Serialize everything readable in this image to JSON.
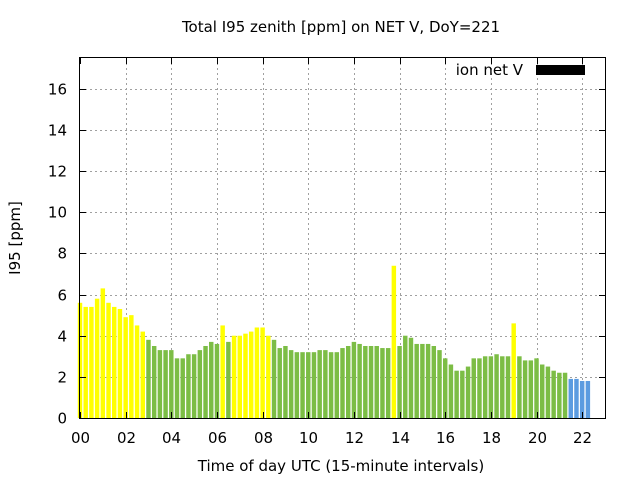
{
  "chart_data": {
    "type": "bar",
    "title": "Total I95 zenith [ppm] on NET V, DoY=221",
    "xlabel": "Time of day UTC (15-minute intervals)",
    "ylabel": "I95 [ppm]",
    "xlim": [
      0,
      23
    ],
    "ylim": [
      0,
      17.5
    ],
    "xticks": [
      "00",
      "02",
      "04",
      "06",
      "08",
      "10",
      "12",
      "14",
      "16",
      "18",
      "20",
      "22"
    ],
    "yticks": [
      "0",
      "2",
      "4",
      "6",
      "8",
      "10",
      "12",
      "14",
      "16"
    ],
    "grid": true,
    "legend": {
      "position": "top-right",
      "label": "ion net V",
      "color": "#000000"
    },
    "colors": {
      "yellow": "#ffff00",
      "green": "#7cbd45",
      "blue": "#5b9be0"
    },
    "interval_hours": 0.25,
    "values": [
      5.6,
      5.4,
      5.4,
      5.8,
      6.3,
      5.6,
      5.4,
      5.3,
      4.9,
      5.0,
      4.5,
      4.2,
      3.8,
      3.5,
      3.3,
      3.3,
      3.3,
      2.9,
      2.9,
      3.1,
      3.1,
      3.3,
      3.5,
      3.7,
      3.6,
      4.5,
      3.7,
      4.0,
      4.0,
      4.1,
      4.2,
      4.4,
      4.4,
      4.0,
      3.8,
      3.4,
      3.5,
      3.3,
      3.2,
      3.2,
      3.2,
      3.2,
      3.3,
      3.3,
      3.2,
      3.2,
      3.4,
      3.5,
      3.7,
      3.6,
      3.5,
      3.5,
      3.5,
      3.4,
      3.4,
      7.4,
      3.5,
      4.0,
      3.9,
      3.6,
      3.6,
      3.6,
      3.5,
      3.3,
      2.9,
      2.6,
      2.3,
      2.3,
      2.5,
      2.9,
      2.9,
      3.0,
      3.0,
      3.1,
      3.0,
      3.0,
      4.6,
      3.0,
      2.8,
      2.8,
      2.9,
      2.6,
      2.5,
      2.3,
      2.2,
      2.2,
      1.9,
      1.9,
      1.8,
      1.8
    ],
    "bar_colors": [
      "yellow",
      "yellow",
      "yellow",
      "yellow",
      "yellow",
      "yellow",
      "yellow",
      "yellow",
      "yellow",
      "yellow",
      "yellow",
      "yellow",
      "green",
      "green",
      "green",
      "green",
      "green",
      "green",
      "green",
      "green",
      "green",
      "green",
      "green",
      "green",
      "green",
      "yellow",
      "green",
      "yellow",
      "yellow",
      "yellow",
      "yellow",
      "yellow",
      "yellow",
      "yellow",
      "green",
      "green",
      "green",
      "green",
      "green",
      "green",
      "green",
      "green",
      "green",
      "green",
      "green",
      "green",
      "green",
      "green",
      "green",
      "green",
      "green",
      "green",
      "green",
      "green",
      "green",
      "yellow",
      "green",
      "green",
      "green",
      "green",
      "green",
      "green",
      "green",
      "green",
      "green",
      "green",
      "green",
      "green",
      "green",
      "green",
      "green",
      "green",
      "green",
      "green",
      "green",
      "green",
      "yellow",
      "green",
      "green",
      "green",
      "green",
      "green",
      "green",
      "green",
      "green",
      "green",
      "blue",
      "blue",
      "blue",
      "blue"
    ]
  }
}
